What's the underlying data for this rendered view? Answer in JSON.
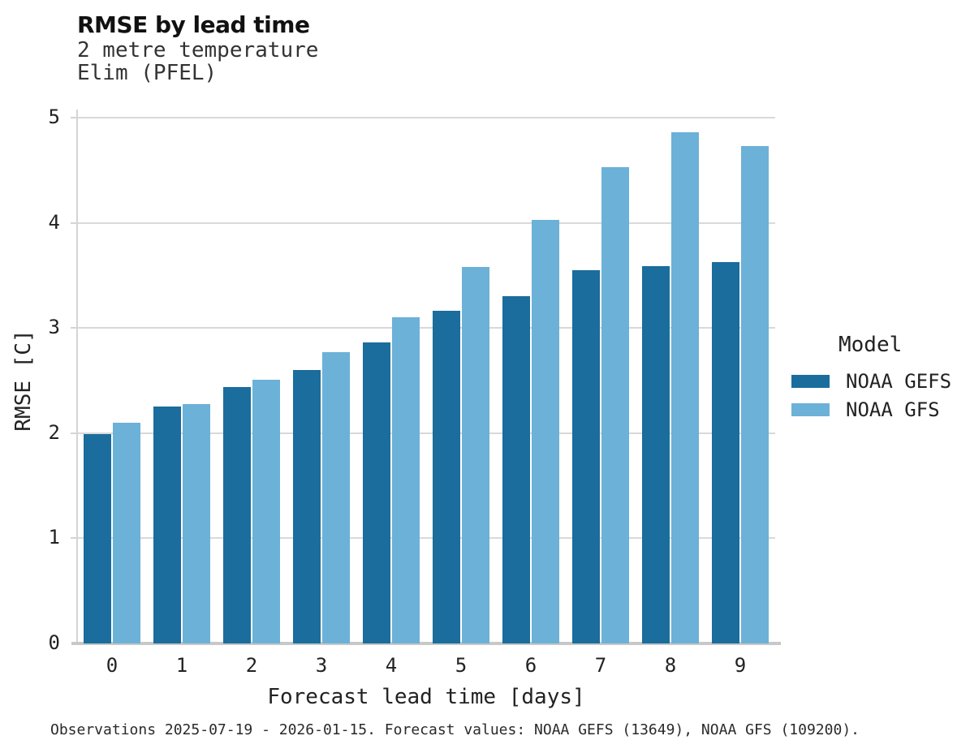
{
  "header": {
    "title": "RMSE by lead time",
    "subtitle_line1": "2 metre temperature",
    "subtitle_line2": "Elim (PFEL)"
  },
  "legend": {
    "title": "Model"
  },
  "footer": {
    "caption": "Observations 2025-07-19 - 2026-01-15. Forecast values: NOAA GEFS (13649), NOAA GFS (109200)."
  },
  "colors": {
    "gefs_bar": "#1a6d9c",
    "gfs_bar": "#6cb1d7",
    "gridline": "#d9d9d9",
    "axis_line": "#c8c8c8",
    "text": "#222222"
  },
  "chart_data": {
    "type": "bar",
    "title": "RMSE by lead time",
    "subtitle": [
      "2 metre temperature",
      "Elim (PFEL)"
    ],
    "xlabel": "Forecast lead time [days]",
    "ylabel": "RMSE [C]",
    "categories": [
      "0",
      "1",
      "2",
      "3",
      "4",
      "5",
      "6",
      "7",
      "8",
      "9"
    ],
    "series": [
      {
        "name": "NOAA GEFS",
        "color": "#1a6d9c",
        "values": [
          1.99,
          2.25,
          2.44,
          2.6,
          2.86,
          3.16,
          3.3,
          3.55,
          3.59,
          3.63
        ]
      },
      {
        "name": "NOAA GFS",
        "color": "#6cb1d7",
        "values": [
          2.1,
          2.28,
          2.51,
          2.77,
          3.1,
          3.58,
          4.03,
          4.53,
          4.86,
          4.73
        ]
      }
    ],
    "ylim": [
      0,
      5
    ],
    "yticks": [
      0,
      1,
      2,
      3,
      4,
      5
    ],
    "grid": true,
    "legend_title": "Model",
    "legend_position": "right"
  }
}
